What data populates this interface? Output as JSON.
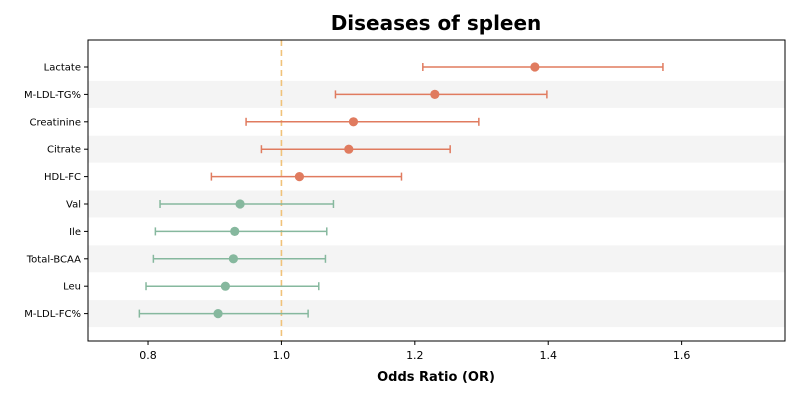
{
  "chart_data": {
    "type": "forest",
    "title": "Diseases of spleen",
    "xlabel": "Odds Ratio (OR)",
    "ylabel": "",
    "xlim": [
      0.71,
      1.755
    ],
    "xticks": [
      0.8,
      1.0,
      1.2,
      1.4,
      1.6
    ],
    "xtick_labels": [
      "0.8",
      "1.0",
      "1.2",
      "1.4",
      "1.6"
    ],
    "reference_line": 1.0,
    "rows": [
      {
        "label": "Lactate",
        "or": 1.38,
        "lo": 1.212,
        "hi": 1.572
      },
      {
        "label": "M-LDL-TG%",
        "or": 1.23,
        "lo": 1.081,
        "hi": 1.398
      },
      {
        "label": "Creatinine",
        "or": 1.108,
        "lo": 0.947,
        "hi": 1.296
      },
      {
        "label": "Citrate",
        "or": 1.101,
        "lo": 0.97,
        "hi": 1.253
      },
      {
        "label": "HDL-FC",
        "or": 1.027,
        "lo": 0.895,
        "hi": 1.18
      },
      {
        "label": "Val",
        "or": 0.938,
        "lo": 0.818,
        "hi": 1.078
      },
      {
        "label": "Ile",
        "or": 0.93,
        "lo": 0.811,
        "hi": 1.068
      },
      {
        "label": "Total-BCAA",
        "or": 0.928,
        "lo": 0.808,
        "hi": 1.066
      },
      {
        "label": "Leu",
        "or": 0.916,
        "lo": 0.797,
        "hi": 1.056
      },
      {
        "label": "M-LDL-FC%",
        "or": 0.905,
        "lo": 0.787,
        "hi": 1.04
      }
    ],
    "colors": {
      "risk": "#e07b5f",
      "protective": "#86b89e",
      "reference_line": "#f0c27a",
      "band": "#f4f4f4"
    },
    "grid": false,
    "legend": "none"
  }
}
